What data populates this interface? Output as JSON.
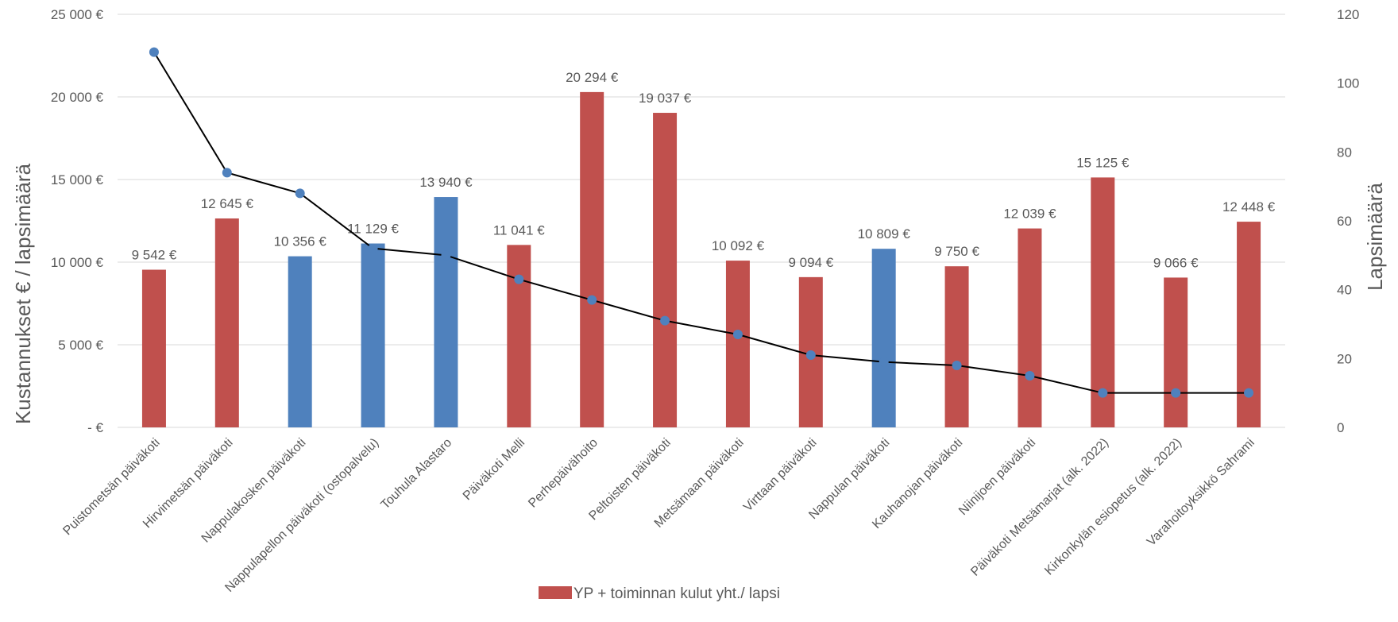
{
  "chart_data": {
    "type": "bar",
    "title": "",
    "ylabel": "Kustannukset € / lapsimäärä",
    "y2label": "Lapsimäärä",
    "ylim": [
      0,
      25000
    ],
    "y2lim": [
      0,
      120
    ],
    "grid": true,
    "legend_position": "bottom",
    "y_ticks": [
      "25 000 €",
      "20 000 €",
      "15 000 €",
      "10 000 €",
      "5 000 €",
      "-  €"
    ],
    "y2_ticks": [
      "120",
      "100",
      "80",
      "60",
      "40",
      "20",
      "0"
    ],
    "y_tick_values": [
      25000,
      20000,
      15000,
      10000,
      5000,
      0
    ],
    "y2_tick_values": [
      120,
      100,
      80,
      60,
      40,
      20,
      0
    ],
    "categories": [
      "Puistometsän päiväkoti",
      "Hirvimetsän päiväkoti",
      "Nappulakosken päiväkoti",
      "Nappulapellon päiväkoti (ostopalvelu)",
      "Touhula Alastaro",
      "Päiväkoti Melli",
      "Perhepäivähoito",
      "Peltoisten päiväkoti",
      "Metsämaan päiväkoti",
      "Virttaan päiväkoti",
      "Nappulan päiväkoti",
      "Kauhanojan päiväkoti",
      "Niinijoen päiväkoti",
      "Päiväkoti Metsämarjat (alk. 2022)",
      "Kirkonkylän esiopetus (alk. 2022)",
      "Varahoitoyksikkö Sahrami"
    ],
    "series": [
      {
        "name": "YP + toiminnan kulut yht./ lapsi",
        "type": "bar",
        "axis": "left",
        "values": [
          9542,
          12645,
          10356,
          11129,
          13940,
          11041,
          20294,
          19037,
          10092,
          9094,
          10809,
          9750,
          12039,
          15125,
          9066,
          12448
        ],
        "labels": [
          "9 542 €",
          "12 645 €",
          "10 356 €",
          "11 129 €",
          "13 940 €",
          "11 041 €",
          "20 294 €",
          "19 037 €",
          "10 092 €",
          "9 094 €",
          "10 809 €",
          "9 750 €",
          "12 039 €",
          "15 125 €",
          "9 066 €",
          "12 448 €"
        ],
        "bar_colors": [
          "#c0504d",
          "#c0504d",
          "#4f81bd",
          "#4f81bd",
          "#4f81bd",
          "#c0504d",
          "#c0504d",
          "#c0504d",
          "#c0504d",
          "#c0504d",
          "#4f81bd",
          "#c0504d",
          "#c0504d",
          "#c0504d",
          "#c0504d",
          "#c0504d"
        ]
      },
      {
        "type": "line",
        "axis": "right",
        "values": [
          109,
          74,
          68,
          52,
          50,
          43,
          37,
          31,
          27,
          21,
          19,
          18,
          15,
          10,
          10,
          10
        ]
      }
    ],
    "colors": {
      "red": "#c0504d",
      "blue": "#4f81bd",
      "line": "#000000",
      "marker": "#4f81bd",
      "grid": "#d9d9d9",
      "text": "#595959"
    }
  }
}
